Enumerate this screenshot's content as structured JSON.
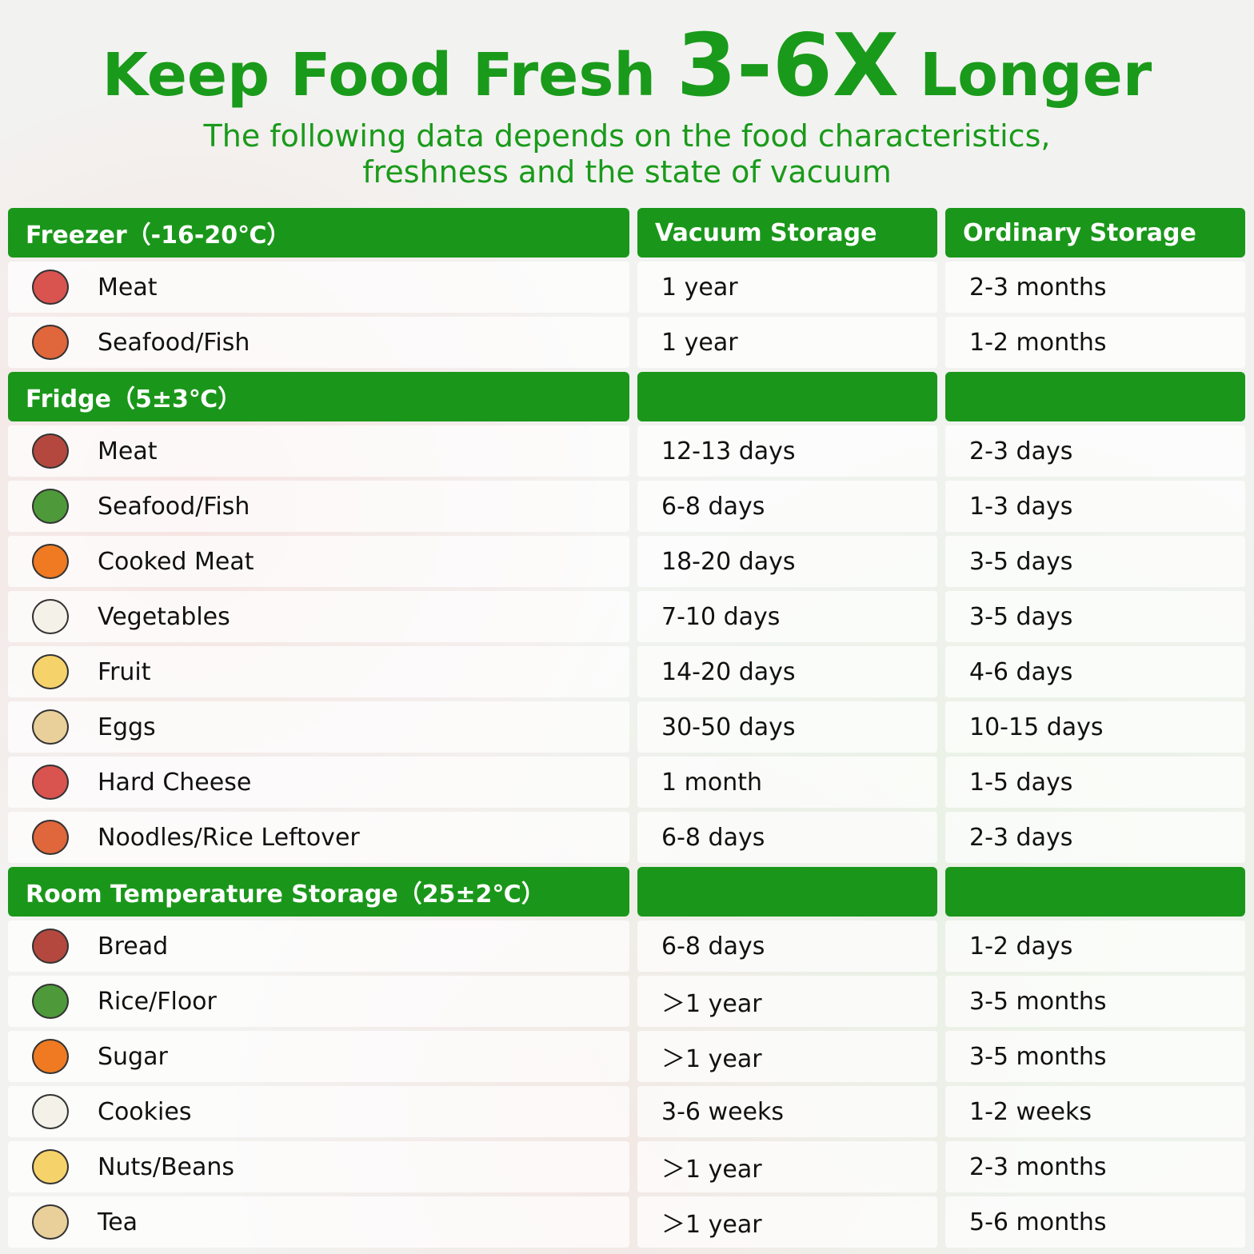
{
  "header": {
    "title": [
      "Keep Food Fresh",
      "3-6X",
      "Longer"
    ],
    "subtitle": [
      "The following data depends on the food characteristics,",
      "freshness and the state of vacuum"
    ]
  },
  "table": {
    "columns": [
      "Vacuum Storage",
      "Ordinary Storage"
    ],
    "sections": [
      {
        "name": "Freezer（-16-20℃）",
        "rows": [
          [
            "Meat",
            "1 year",
            "2-3 months"
          ],
          [
            "Seafood/Fish",
            "1 year",
            "1-2 months"
          ]
        ]
      },
      {
        "name": "Fridge（5±3℃）",
        "rows": [
          [
            "Meat",
            "12-13 days",
            "2-3 days"
          ],
          [
            "Seafood/Fish",
            "6-8 days",
            "1-3 days"
          ],
          [
            "Cooked Meat",
            "18-20 days",
            "3-5 days"
          ],
          [
            "Vegetables",
            "7-10 days",
            "3-5 days"
          ],
          [
            "Fruit",
            "14-20 days",
            "4-6 days"
          ],
          [
            "Eggs",
            "30-50 days",
            "10-15 days"
          ],
          [
            "Hard Cheese",
            "1 month",
            "1-5 days"
          ],
          [
            "Noodles/Rice Leftover",
            "6-8 days",
            "2-3 days"
          ]
        ]
      },
      {
        "name": "Room Temperature Storage（25±2℃）",
        "rows": [
          [
            "Bread",
            "6-8 days",
            "1-2 days"
          ],
          [
            "Rice/Floor",
            "＞1 year",
            "3-5 months"
          ],
          [
            "Sugar",
            "＞1 year",
            "3-5 months"
          ],
          [
            "Cookies",
            "3-6 weeks",
            "1-2 weeks"
          ],
          [
            "Nuts/Beans",
            "＞1 year",
            "2-3 months"
          ],
          [
            "Tea",
            "＞1 year",
            "5-6 months"
          ]
        ]
      }
    ]
  }
}
